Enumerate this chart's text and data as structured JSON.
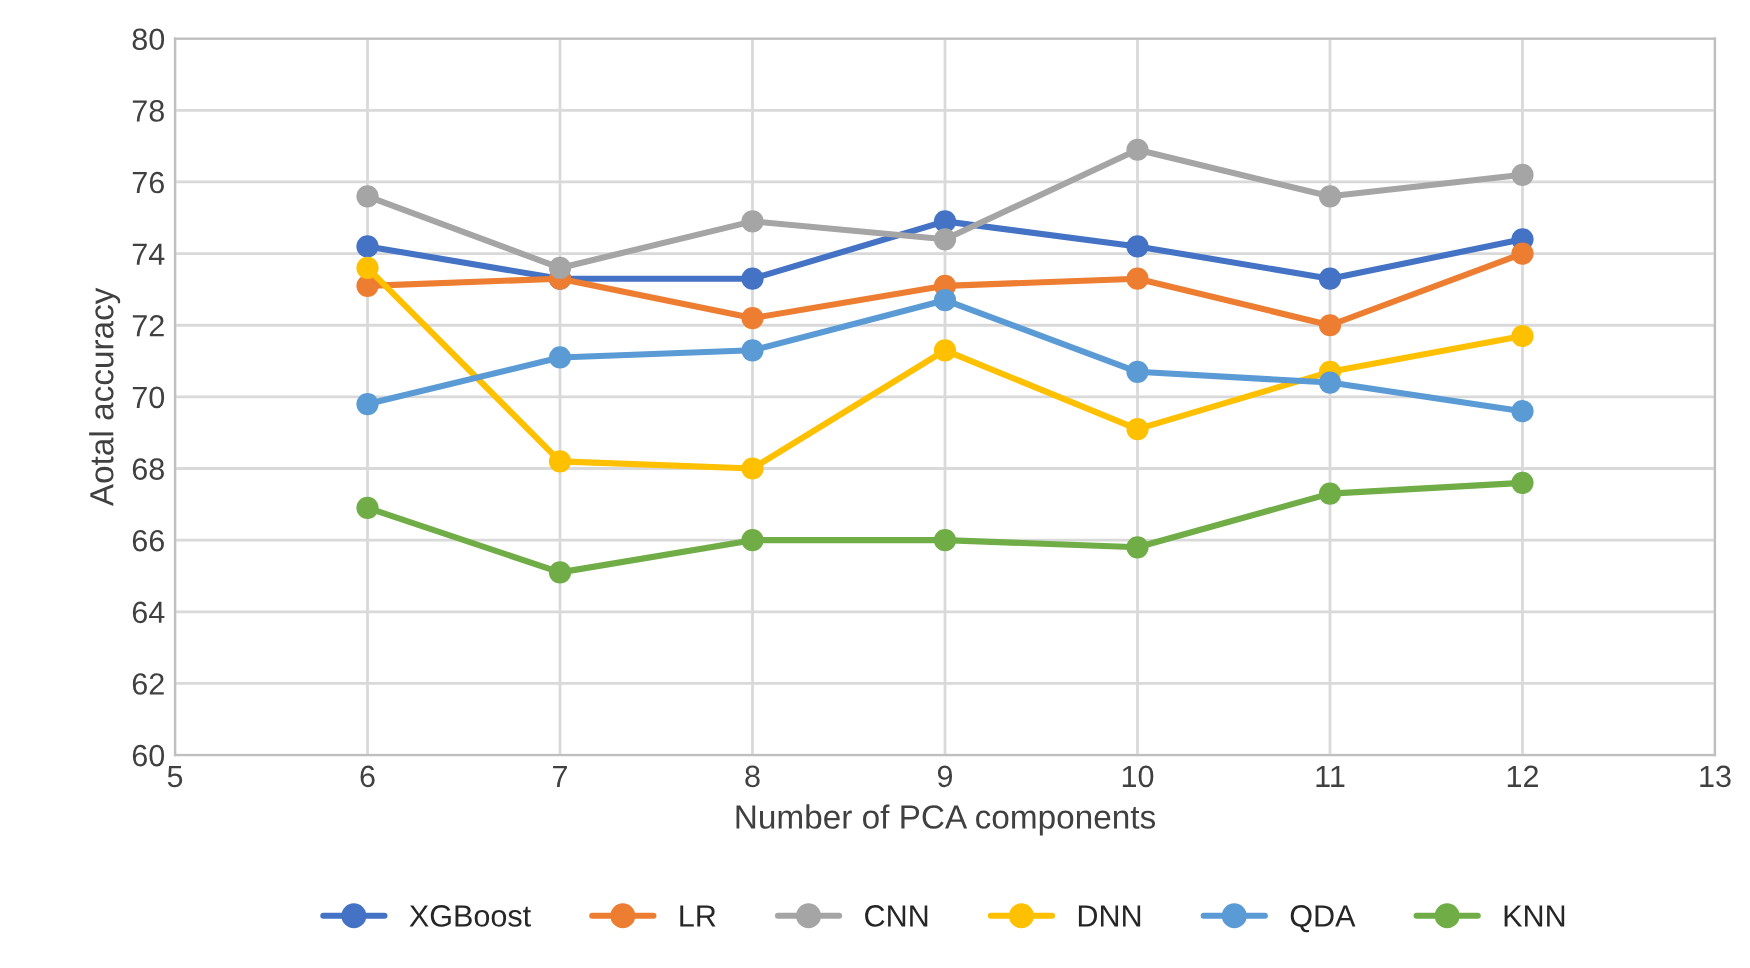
{
  "chart_data": {
    "type": "line",
    "xlabel": "Number of PCA components",
    "ylabel": "Aotal accuracy",
    "x": [
      6,
      7,
      8,
      9,
      10,
      11,
      12
    ],
    "series": [
      {
        "name": "XGBoost",
        "color": "#4472c4",
        "values": [
          74.2,
          73.3,
          73.3,
          74.9,
          74.2,
          73.3,
          74.4
        ]
      },
      {
        "name": "LR",
        "color": "#ed7d31",
        "values": [
          73.1,
          73.3,
          72.2,
          73.1,
          73.3,
          72.0,
          74.0
        ]
      },
      {
        "name": "CNN",
        "color": "#a5a5a5",
        "values": [
          75.6,
          73.6,
          74.9,
          74.4,
          76.9,
          75.6,
          76.2
        ]
      },
      {
        "name": "DNN",
        "color": "#ffc000",
        "values": [
          73.6,
          68.2,
          68.0,
          71.3,
          69.1,
          70.7,
          71.7
        ]
      },
      {
        "name": "QDA",
        "color": "#5b9bd5",
        "values": [
          69.8,
          71.1,
          71.3,
          72.7,
          70.7,
          70.4,
          69.6
        ]
      },
      {
        "name": "KNN",
        "color": "#70ad47",
        "values": [
          66.9,
          65.1,
          66.0,
          66.0,
          65.8,
          67.3,
          67.6
        ]
      }
    ],
    "xlim": [
      5,
      13
    ],
    "xticks": [
      5,
      6,
      7,
      8,
      9,
      10,
      11,
      12,
      13
    ],
    "ylim": [
      60,
      80
    ],
    "yticks": [
      60,
      62,
      64,
      66,
      68,
      70,
      72,
      74,
      76,
      78,
      80
    ],
    "grid": true,
    "legend": "bottom",
    "marker": "circle",
    "line_style": "solid"
  }
}
